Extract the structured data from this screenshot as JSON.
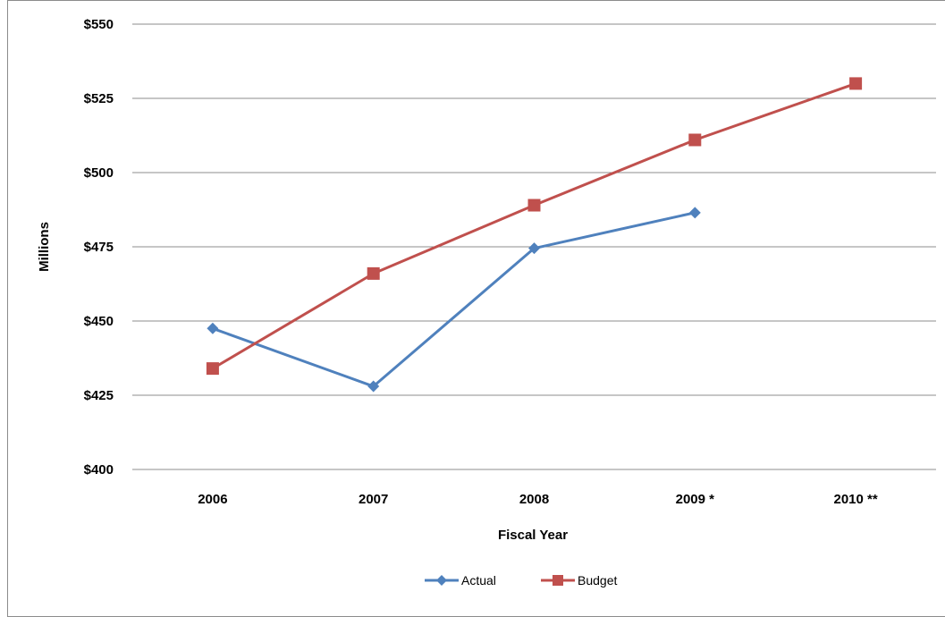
{
  "chart_data": {
    "type": "line",
    "categories": [
      "2006",
      "2007",
      "2008",
      "2009 *",
      "2010 **"
    ],
    "series": [
      {
        "name": "Actual",
        "values": [
          447.5,
          428,
          474.5,
          486.5,
          null
        ],
        "color": "#4F81BD",
        "marker": "diamond"
      },
      {
        "name": "Budget",
        "values": [
          434,
          466,
          489,
          511,
          530
        ],
        "color": "#C0504D",
        "marker": "square"
      }
    ],
    "xlabel": "Fiscal Year",
    "ylabel": "Millions",
    "ylim": [
      400,
      550
    ],
    "yticks": [
      400,
      425,
      450,
      475,
      500,
      525,
      550
    ],
    "ytick_labels": [
      "$400",
      "$425",
      "$450",
      "$475",
      "$500",
      "$525",
      "$550"
    ],
    "grid": true,
    "legend_position": "bottom"
  }
}
